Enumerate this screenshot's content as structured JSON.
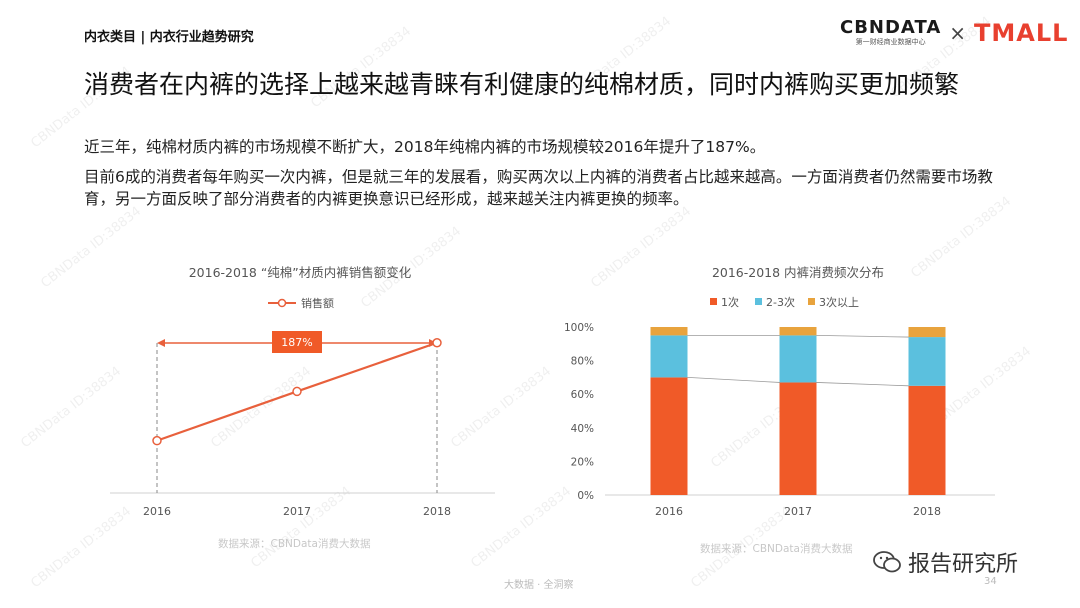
{
  "header": {
    "section_label": "内衣类目 | 内衣行业趋势研究",
    "logo_cbn": "CBNDATA",
    "logo_cbn_sub": "第一财经商业数据中心",
    "logo_times": "×",
    "logo_tmall": "TMALL"
  },
  "headline": "消费者在内裤的选择上越来越青睐有利健康的纯棉材质，同时内裤购买更加频繁",
  "description": {
    "line1": "近三年，纯棉材质内裤的市场规模不断扩大，2018年纯棉内裤的市场规模较2016年提升了187%。",
    "line2": "目前6成的消费者每年购买一次内裤，但是就三年的发展看，购买两次以上内裤的消费者占比越来越高。一方面消费者仍然需要市场教育，另一方面反映了部分消费者的内裤更换意识已经形成，越来越关注内裤更换的频率。"
  },
  "chart_data": [
    {
      "type": "line",
      "title": "2016-2018 “纯棉”材质内裤销售额变化",
      "categories": [
        "2016",
        "2017",
        "2018"
      ],
      "series": [
        {
          "name": "销售额",
          "values": [
            1.0,
            1.94,
            2.87
          ]
        }
      ],
      "ylim": [
        0,
        3.4
      ],
      "annotation": "187%",
      "source": "数据来源：CBNData消费大数据",
      "colors": {
        "line": "#e8603c"
      }
    },
    {
      "type": "bar",
      "stacked": true,
      "title": "2016-2018 内裤消费频次分布",
      "categories": [
        "2016",
        "2017",
        "2018"
      ],
      "series": [
        {
          "name": "1次",
          "values": [
            70,
            67,
            65
          ],
          "color": "#f05a28"
        },
        {
          "name": "2-3次",
          "values": [
            25,
            28,
            29
          ],
          "color": "#5bc0de"
        },
        {
          "name": "3次以上",
          "values": [
            5,
            5,
            6
          ],
          "color": "#e8a33d"
        }
      ],
      "yticks": [
        "0%",
        "20%",
        "40%",
        "60%",
        "80%",
        "100%"
      ],
      "ylim": [
        0,
        100
      ],
      "source": "数据来源：CBNData消费大数据"
    }
  ],
  "footer": {
    "brand": "大数据 · 全洞察",
    "page": "34",
    "wechat_label": "报告研究所"
  },
  "watermark": "CBNData ID:38834"
}
